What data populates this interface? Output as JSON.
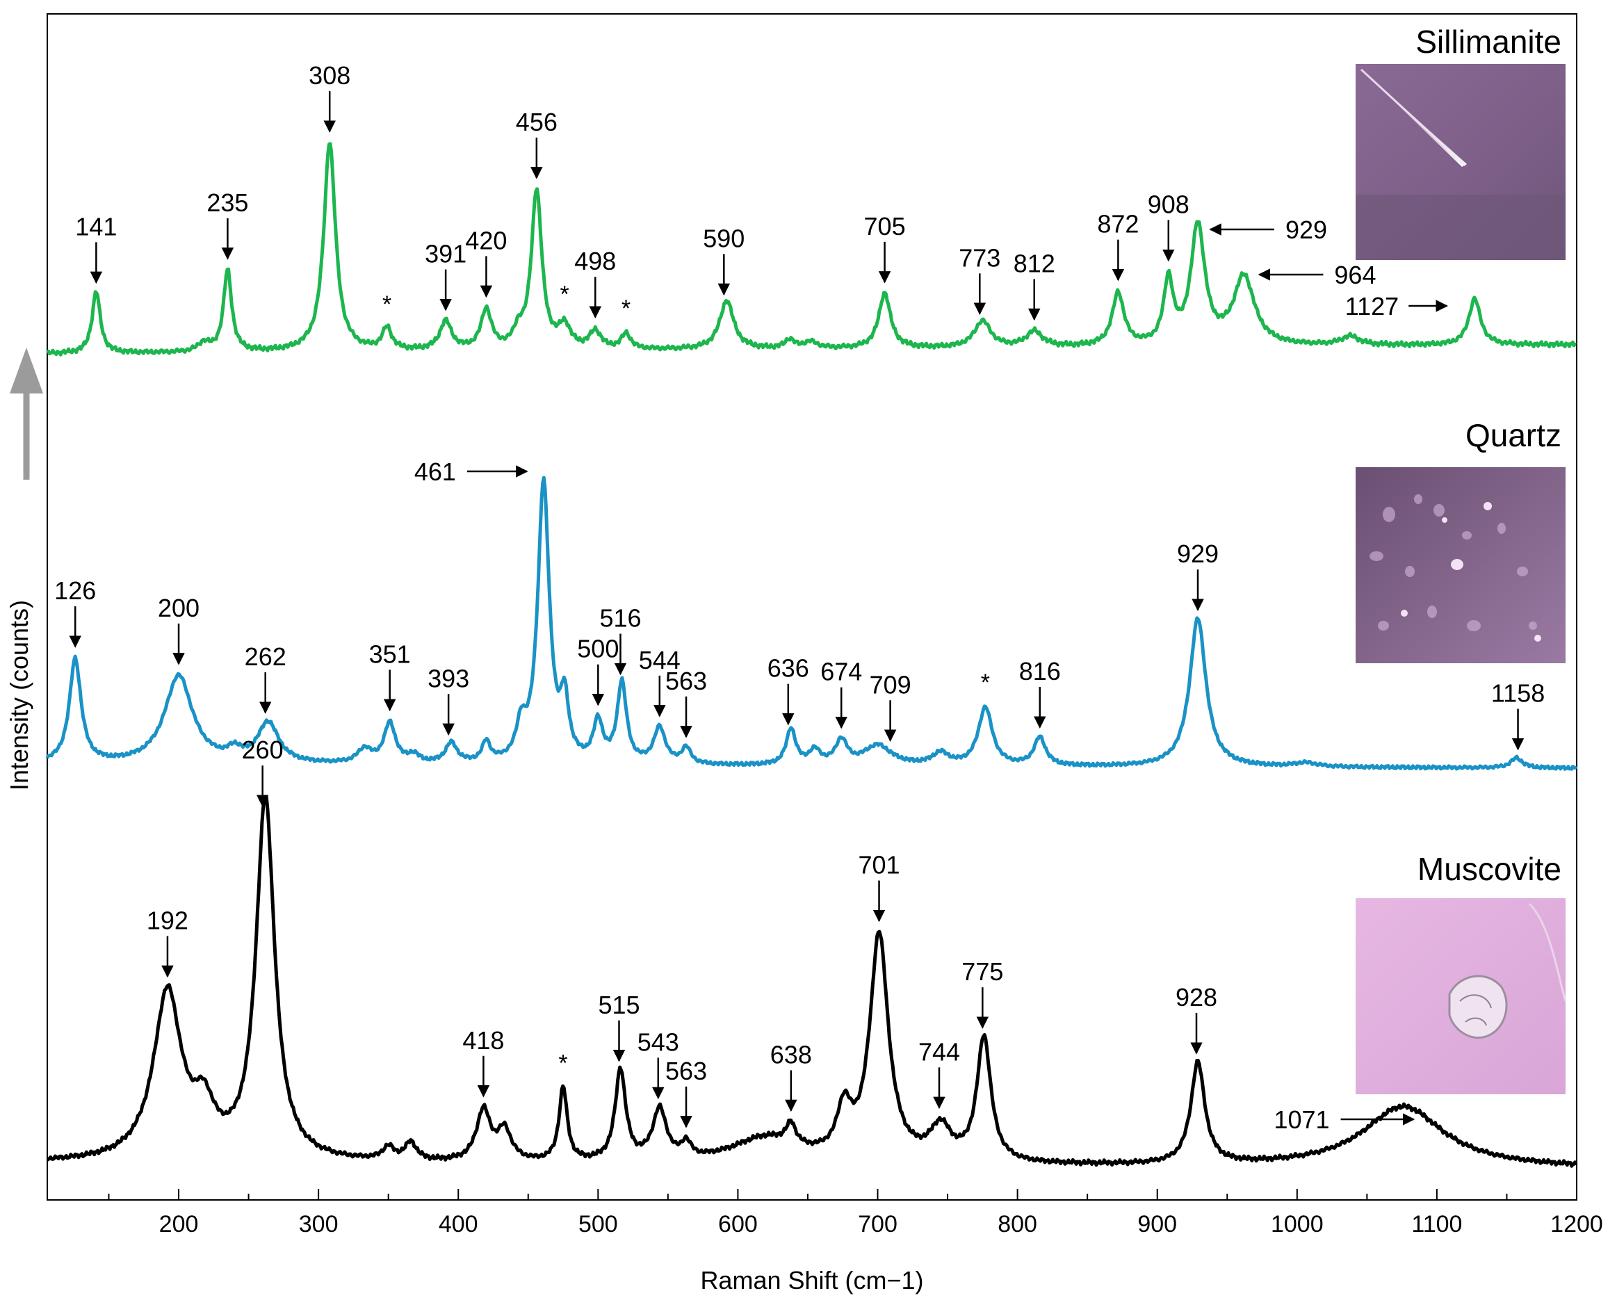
{
  "chart_data": {
    "type": "line",
    "xlabel": "Raman Shift (cm−1)",
    "ylabel": "Intensity (counts)",
    "xlim": [
      106,
      1200
    ],
    "x_ticks": [
      200,
      300,
      400,
      500,
      600,
      700,
      800,
      900,
      1000,
      1100,
      1200
    ],
    "grid": false,
    "series": [
      {
        "name": "Sillimanite",
        "color": "#1DB64E",
        "baseline": 0.0,
        "noise": 0.012,
        "peaks": [
          [
            141,
            0.28,
            3.5
          ],
          [
            235,
            0.37,
            3.5
          ],
          [
            308,
            0.95,
            5
          ],
          [
            349,
            0.1,
            4
          ],
          [
            391,
            0.13,
            5
          ],
          [
            420,
            0.18,
            4.5
          ],
          [
            443,
            0.07,
            4
          ],
          [
            456,
            0.72,
            4.5
          ],
          [
            476,
            0.1,
            5
          ],
          [
            498,
            0.08,
            5
          ],
          [
            520,
            0.07,
            4
          ],
          [
            592,
            0.22,
            6
          ],
          [
            637,
            0.04,
            4
          ],
          [
            652,
            0.03,
            6
          ],
          [
            705,
            0.25,
            5
          ],
          [
            775,
            0.12,
            7
          ],
          [
            812,
            0.07,
            7
          ],
          [
            872,
            0.24,
            5
          ],
          [
            908,
            0.29,
            4
          ],
          [
            929,
            0.54,
            6
          ],
          [
            962,
            0.31,
            9
          ],
          [
            1038,
            0.04,
            8
          ],
          [
            1127,
            0.21,
            5
          ],
          [
            218,
            0.04,
            5
          ]
        ],
        "peak_labels": [
          {
            "text": "141",
            "x": 141
          },
          {
            "text": "235",
            "x": 235
          },
          {
            "text": "308",
            "x": 308
          },
          {
            "text": "*",
            "x": 349
          },
          {
            "text": "391",
            "x": 391
          },
          {
            "text": "420",
            "x": 420
          },
          {
            "text": "456",
            "x": 456
          },
          {
            "text": "*",
            "x": 476
          },
          {
            "text": "498",
            "x": 498
          },
          {
            "text": "*",
            "x": 520
          },
          {
            "text": "590",
            "x": 590
          },
          {
            "text": "705",
            "x": 705
          },
          {
            "text": "773",
            "x": 773
          },
          {
            "text": "812",
            "x": 812
          },
          {
            "text": "872",
            "x": 872
          },
          {
            "text": "908",
            "x": 908
          },
          {
            "text": "929",
            "x": 929
          },
          {
            "text": "964",
            "x": 964
          },
          {
            "text": "1127",
            "x": 1127
          }
        ]
      },
      {
        "name": "Quartz",
        "color": "#1A92C6",
        "baseline": 0.0,
        "noise": 0.01,
        "peaks": [
          [
            126,
            0.52,
            5
          ],
          [
            200,
            0.44,
            12
          ],
          [
            240,
            0.05,
            6
          ],
          [
            264,
            0.2,
            9
          ],
          [
            333,
            0.07,
            6
          ],
          [
            351,
            0.2,
            5
          ],
          [
            368,
            0.04,
            5
          ],
          [
            395,
            0.1,
            5
          ],
          [
            420,
            0.1,
            3.5
          ],
          [
            445,
            0.16,
            4
          ],
          [
            461,
            1.4,
            5
          ],
          [
            476,
            0.28,
            3.5
          ],
          [
            500,
            0.2,
            4
          ],
          [
            517,
            0.4,
            4
          ],
          [
            544,
            0.18,
            5
          ],
          [
            563,
            0.08,
            4
          ],
          [
            638,
            0.18,
            4
          ],
          [
            655,
            0.07,
            5
          ],
          [
            674,
            0.12,
            5
          ],
          [
            700,
            0.1,
            12
          ],
          [
            745,
            0.06,
            7
          ],
          [
            777,
            0.29,
            6
          ],
          [
            816,
            0.14,
            5
          ],
          [
            929,
            0.74,
            7
          ],
          [
            1006,
            0.02,
            10
          ],
          [
            1157,
            0.05,
            5
          ]
        ],
        "peak_labels": [
          {
            "text": "126",
            "x": 126
          },
          {
            "text": "200",
            "x": 200
          },
          {
            "text": "262",
            "x": 262
          },
          {
            "text": "351",
            "x": 351
          },
          {
            "text": "393",
            "x": 393
          },
          {
            "text": "461",
            "x": 461
          },
          {
            "text": "500",
            "x": 500
          },
          {
            "text": "516",
            "x": 516
          },
          {
            "text": "544",
            "x": 544
          },
          {
            "text": "563",
            "x": 563
          },
          {
            "text": "636",
            "x": 636
          },
          {
            "text": "674",
            "x": 674
          },
          {
            "text": "709",
            "x": 709
          },
          {
            "text": "*",
            "x": 777
          },
          {
            "text": "816",
            "x": 816
          },
          {
            "text": "929",
            "x": 929
          },
          {
            "text": "1158",
            "x": 1158
          }
        ]
      },
      {
        "name": "Muscovite",
        "color": "#000000",
        "baseline": 0.0,
        "noise": 0.01,
        "peaks": [
          [
            192,
            0.66,
            12
          ],
          [
            218,
            0.17,
            9
          ],
          [
            262,
            1.42,
            8
          ],
          [
            350,
            0.05,
            5
          ],
          [
            366,
            0.07,
            5
          ],
          [
            418,
            0.2,
            6
          ],
          [
            433,
            0.12,
            6
          ],
          [
            475,
            0.29,
            3.5
          ],
          [
            516,
            0.36,
            4.5
          ],
          [
            544,
            0.2,
            6
          ],
          [
            563,
            0.06,
            4
          ],
          [
            620,
            0.1,
            30
          ],
          [
            638,
            0.08,
            4
          ],
          [
            676,
            0.18,
            6
          ],
          [
            701,
            0.89,
            8
          ],
          [
            745,
            0.13,
            9
          ],
          [
            776,
            0.49,
            6
          ],
          [
            929,
            0.4,
            6
          ],
          [
            1076,
            0.24,
            35
          ]
        ],
        "peak_labels": [
          {
            "text": "192",
            "x": 192
          },
          {
            "text": "260",
            "x": 260
          },
          {
            "text": "418",
            "x": 418
          },
          {
            "text": "*",
            "x": 475
          },
          {
            "text": "515",
            "x": 515
          },
          {
            "text": "543",
            "x": 543
          },
          {
            "text": "563",
            "x": 563
          },
          {
            "text": "638",
            "x": 638
          },
          {
            "text": "701",
            "x": 701
          },
          {
            "text": "744",
            "x": 744
          },
          {
            "text": "775",
            "x": 775
          },
          {
            "text": "928",
            "x": 928
          },
          {
            "text": "1071",
            "x": 1071
          }
        ]
      }
    ]
  }
}
